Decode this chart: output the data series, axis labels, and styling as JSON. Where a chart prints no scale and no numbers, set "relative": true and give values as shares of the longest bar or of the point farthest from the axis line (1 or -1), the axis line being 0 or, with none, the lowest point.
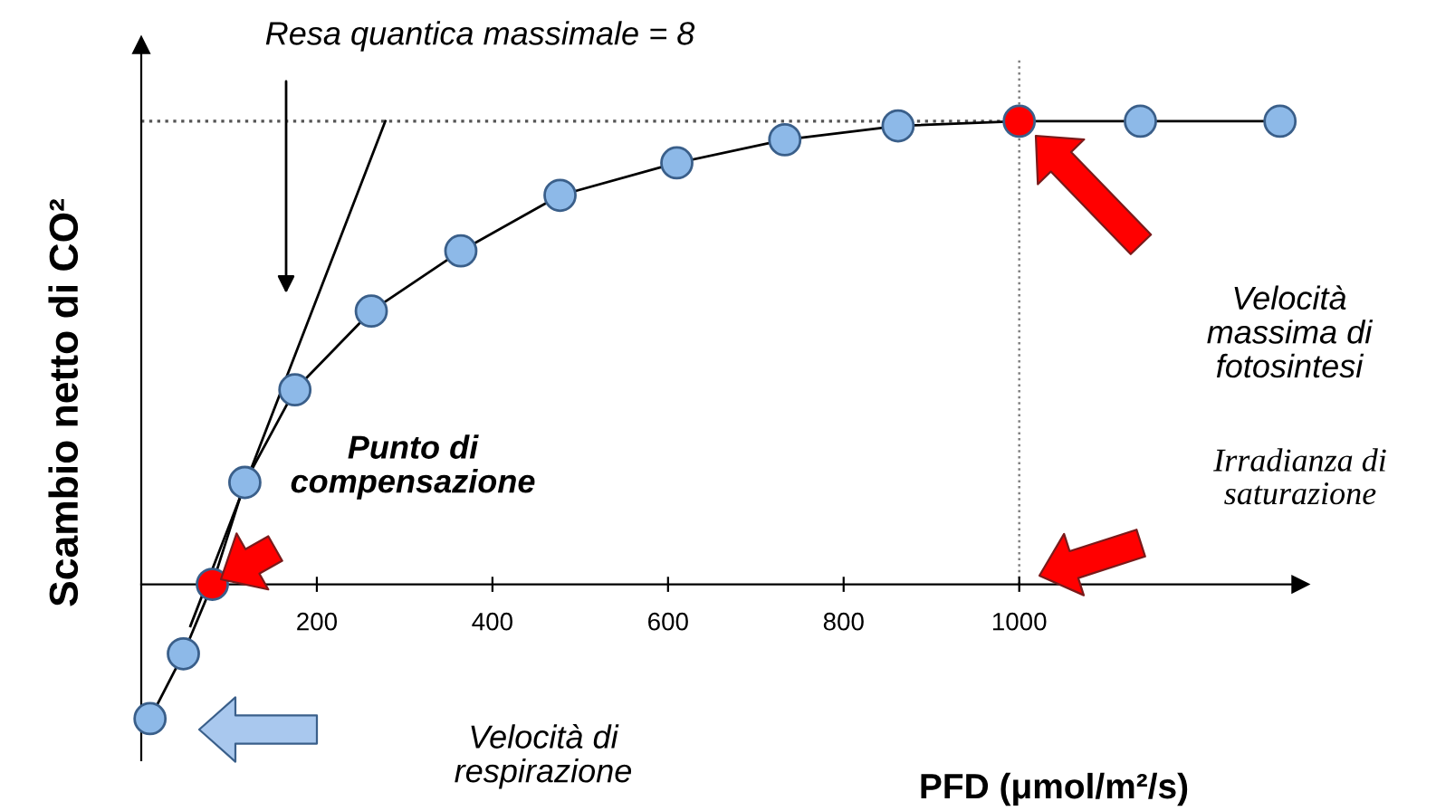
{
  "chart_data": {
    "type": "line",
    "relative": true,
    "xlabel": "PFD (μmol/m²/s)",
    "ylabel": "Scambio netto di CO²",
    "xlim": [
      0,
      1320
    ],
    "xticks": [
      200,
      400,
      600,
      800,
      1000
    ],
    "grid": false,
    "series": [
      {
        "color": "#000000",
        "marker": "circle",
        "line_style": "solid",
        "x": [
          10,
          48,
          81,
          118,
          175,
          262,
          364,
          477,
          610,
          733,
          862,
          1000,
          1138,
          1297
        ],
        "values": [
          -0.29,
          -0.15,
          0,
          0.22,
          0.42,
          0.59,
          0.72,
          0.84,
          0.91,
          0.96,
          0.99,
          1,
          1,
          1
        ],
        "colors": [
          "#8db9e8",
          "#8db9e8",
          "#ff0000",
          "#8db9e8",
          "#8db9e8",
          "#8db9e8",
          "#8db9e8",
          "#8db9e8",
          "#8db9e8",
          "#8db9e8",
          "#8db9e8",
          "#ff0000",
          "#8db9e8",
          "#8db9e8"
        ]
      },
      {
        "type": "line",
        "color": "#000000",
        "marker": "none",
        "line_style": "solid",
        "x": [
          56,
          278
        ],
        "values": [
          -0.09,
          1
        ]
      }
    ],
    "ref_lines": [
      {
        "axis": "y",
        "value": 1,
        "line_style": "dotted",
        "color": "#555555"
      },
      {
        "axis": "x",
        "value": 1000,
        "line_style": "dotted",
        "color": "#808080"
      }
    ],
    "annotations": [
      "Resa quantica massimale = 8",
      "Punto di\ncompensazione",
      "Velocità\nmassima di\nfotosintesi",
      "Irradianza di\nsaturazione",
      "Velocità di\nrespirazione"
    ]
  }
}
